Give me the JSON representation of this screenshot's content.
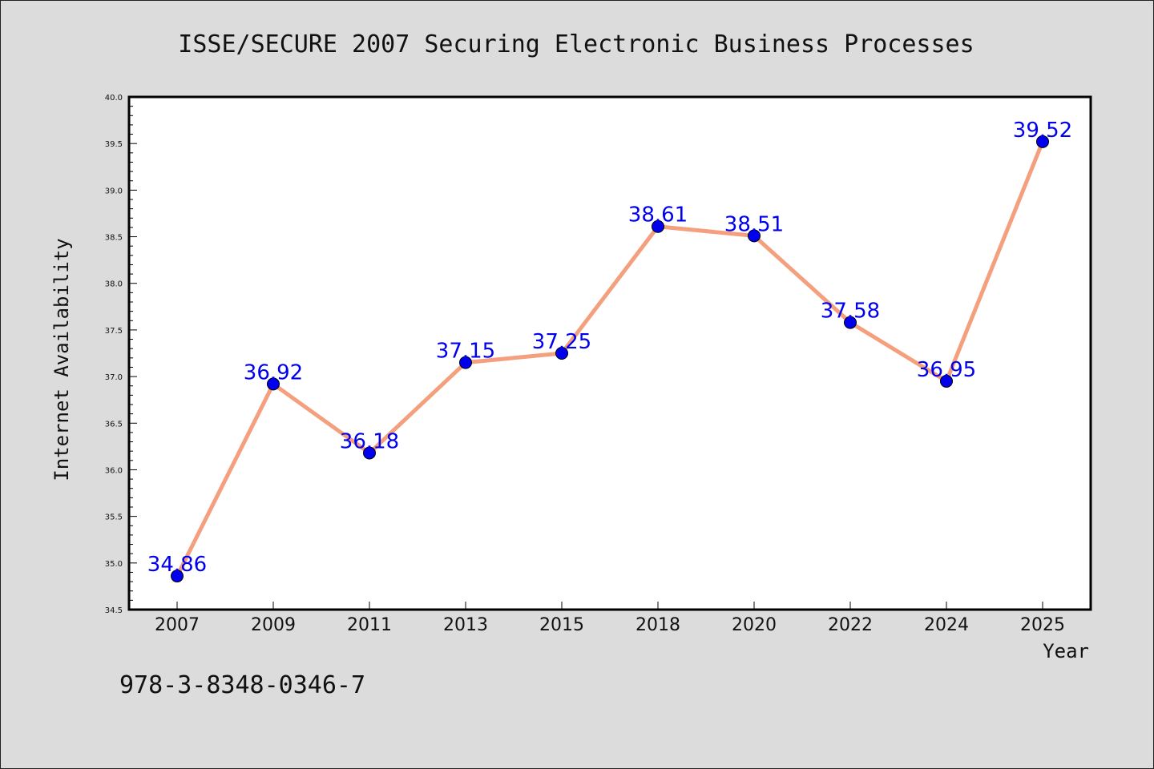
{
  "chart_data": {
    "type": "line",
    "title": "ISSE/SECURE 2007 Securing Electronic Business Processes",
    "xlabel": "Year",
    "ylabel": "Internet Availability",
    "categories": [
      "2007",
      "2009",
      "2011",
      "2013",
      "2015",
      "2018",
      "2020",
      "2022",
      "2024",
      "2025"
    ],
    "series": [
      {
        "values": [
          34.86,
          36.92,
          36.18,
          37.15,
          37.25,
          38.61,
          38.51,
          37.58,
          36.95,
          39.52
        ],
        "labels": [
          "34.86",
          "36.92",
          "36.18",
          "37.15",
          "37.25",
          "38.61",
          "38.51",
          "37.58",
          "36.95",
          "39.52"
        ]
      }
    ],
    "ylim": [
      34.5,
      40.0
    ],
    "yticks": [
      "34.5",
      "35.0",
      "35.5",
      "36.0",
      "36.5",
      "37.0",
      "37.5",
      "38.0",
      "38.5",
      "39.0",
      "39.5",
      "40.0"
    ],
    "grid": false,
    "colors": {
      "line": "#f4a07e",
      "marker": "#0000ee",
      "label": "#0000ee",
      "background": "#dcdcdc",
      "plot_background": "#ffffff"
    }
  },
  "footer": {
    "isbn": "978-3-8348-0346-7"
  }
}
